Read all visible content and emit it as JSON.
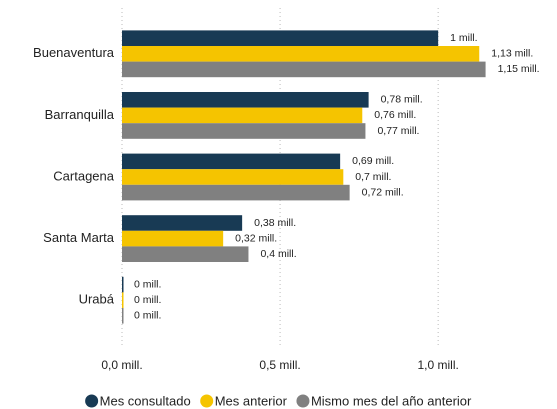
{
  "chart_data": {
    "type": "bar",
    "orientation": "horizontal",
    "categories": [
      "Buenaventura",
      "Barranquilla",
      "Cartagena",
      "Santa Marta",
      "Urabá"
    ],
    "series": [
      {
        "name": "Mes consultado",
        "color": "#183a54",
        "values": [
          1,
          0.78,
          0.69,
          0.38,
          0
        ],
        "value_labels": [
          "1 mill.",
          "0,78 mill.",
          "0,69 mill.",
          "0,38 mill.",
          "0 mill."
        ]
      },
      {
        "name": "Mes anterior",
        "color": "#f5c400",
        "values": [
          1.13,
          0.76,
          0.7,
          0.32,
          0
        ],
        "value_labels": [
          "1,13 mill.",
          "0,76 mill.",
          "0,7 mill.",
          "0,32 mill.",
          "0 mill."
        ]
      },
      {
        "name": "Mismo mes del año anterior",
        "color": "#808080",
        "values": [
          1.15,
          0.77,
          0.72,
          0.4,
          0
        ],
        "value_labels": [
          "1,15 mill.",
          "0,77 mill.",
          "0,72 mill.",
          "0,4 mill.",
          "0 mill."
        ]
      }
    ],
    "xlim": [
      0,
      1.3
    ],
    "xticks": [
      {
        "value": 0,
        "label": "0,0 mill."
      },
      {
        "value": 0.5,
        "label": "0,5 mill."
      },
      {
        "value": 1,
        "label": "1,0 mill."
      }
    ],
    "grid": true,
    "legend": "bottom"
  }
}
